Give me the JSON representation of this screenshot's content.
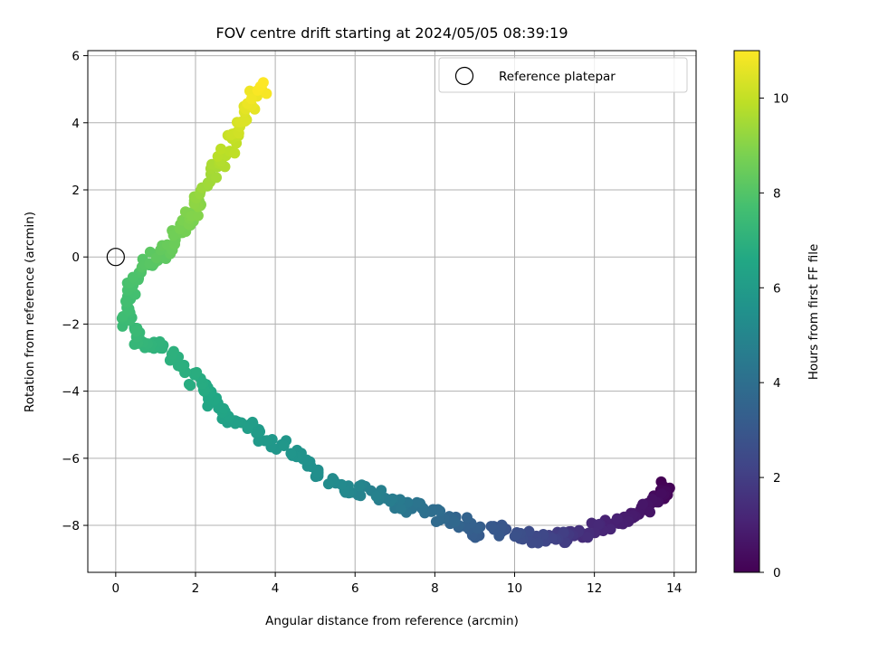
{
  "chart_data": {
    "type": "scatter",
    "title": "FOV centre drift starting at 2024/05/05 08:39:19",
    "xlabel": "Angular distance from reference (arcmin)",
    "ylabel": "Rotation from reference (arcmin)",
    "xlim": [
      -0.7,
      14.55
    ],
    "ylim": [
      -9.4,
      6.15
    ],
    "xticks": [
      0,
      2,
      4,
      6,
      8,
      10,
      12,
      14
    ],
    "yticks": [
      -8,
      -6,
      -4,
      -2,
      0,
      2,
      4,
      6
    ],
    "grid": true,
    "legend": {
      "placement": "top-right",
      "entries": [
        "Reference platepar"
      ]
    },
    "reference_point": {
      "x": 0,
      "y": 0
    },
    "colorbar": {
      "label": "Hours from first FF file",
      "min": 0,
      "max": 11,
      "ticks": [
        0,
        2,
        4,
        6,
        8,
        10
      ],
      "colormap": "viridis"
    },
    "anchors": [
      {
        "t": 0.0,
        "x": 13.85,
        "y": -6.85
      },
      {
        "t": 0.3,
        "x": 13.6,
        "y": -7.15
      },
      {
        "t": 0.6,
        "x": 13.25,
        "y": -7.45
      },
      {
        "t": 0.9,
        "x": 12.7,
        "y": -7.85
      },
      {
        "t": 1.25,
        "x": 12.0,
        "y": -8.1
      },
      {
        "t": 1.6,
        "x": 11.55,
        "y": -8.35
      },
      {
        "t": 2.0,
        "x": 11.1,
        "y": -8.35
      },
      {
        "t": 2.4,
        "x": 10.5,
        "y": -8.45
      },
      {
        "t": 2.8,
        "x": 9.8,
        "y": -8.1
      },
      {
        "t": 3.2,
        "x": 9.1,
        "y": -8.2
      },
      {
        "t": 3.6,
        "x": 8.5,
        "y": -7.8
      },
      {
        "t": 4.0,
        "x": 7.8,
        "y": -7.6
      },
      {
        "t": 4.4,
        "x": 7.1,
        "y": -7.4
      },
      {
        "t": 4.8,
        "x": 6.4,
        "y": -7.0
      },
      {
        "t": 5.2,
        "x": 5.5,
        "y": -6.8
      },
      {
        "t": 5.5,
        "x": 4.7,
        "y": -6.1
      },
      {
        "t": 5.8,
        "x": 4.0,
        "y": -5.5
      },
      {
        "t": 6.1,
        "x": 3.2,
        "y": -5.0
      },
      {
        "t": 6.4,
        "x": 2.6,
        "y": -4.5
      },
      {
        "t": 6.65,
        "x": 2.2,
        "y": -4.0
      },
      {
        "t": 6.85,
        "x": 1.9,
        "y": -3.55
      },
      {
        "t": 7.05,
        "x": 1.1,
        "y": -2.6
      },
      {
        "t": 7.25,
        "x": 0.6,
        "y": -2.5
      },
      {
        "t": 7.45,
        "x": 0.25,
        "y": -1.9
      },
      {
        "t": 7.65,
        "x": 0.25,
        "y": -1.2
      },
      {
        "t": 7.85,
        "x": 0.55,
        "y": -0.6
      },
      {
        "t": 8.1,
        "x": 0.9,
        "y": -0.1
      },
      {
        "t": 8.4,
        "x": 1.3,
        "y": 0.3
      },
      {
        "t": 8.7,
        "x": 1.7,
        "y": 0.9
      },
      {
        "t": 9.0,
        "x": 2.0,
        "y": 1.5
      },
      {
        "t": 9.4,
        "x": 2.3,
        "y": 2.2
      },
      {
        "t": 9.8,
        "x": 2.7,
        "y": 3.0
      },
      {
        "t": 10.2,
        "x": 3.1,
        "y": 3.8
      },
      {
        "t": 10.6,
        "x": 3.4,
        "y": 4.5
      },
      {
        "t": 11.0,
        "x": 3.7,
        "y": 5.2
      }
    ]
  }
}
